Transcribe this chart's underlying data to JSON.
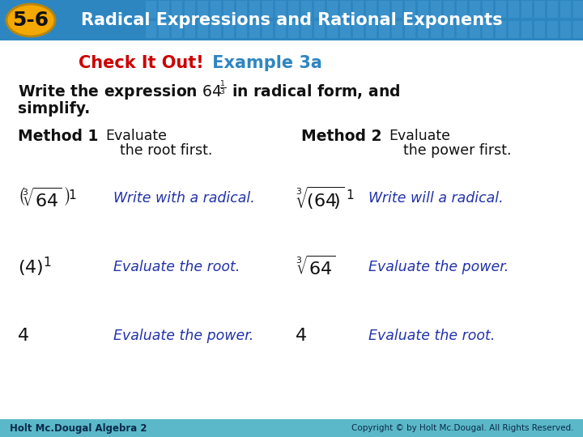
{
  "header_bg": "#2e86c1",
  "header_text": "Radical Expressions and Rational Exponents",
  "header_num": "5-6",
  "header_num_bg": "#f5a800",
  "header_text_color": "#ffffff",
  "body_bg": "#ffffff",
  "check_color": "#cc0000",
  "example_color": "#2e86c1",
  "check_text": "Check It Out!",
  "example_text": " Example 3a",
  "body_black": "#111111",
  "body_blue": "#2233aa",
  "footer_bg": "#5bb8c8",
  "footer_left": "Holt Mc.Dougal Algebra 2",
  "footer_right": "Copyright © by Holt Mc.Dougal. All Rights Reserved."
}
